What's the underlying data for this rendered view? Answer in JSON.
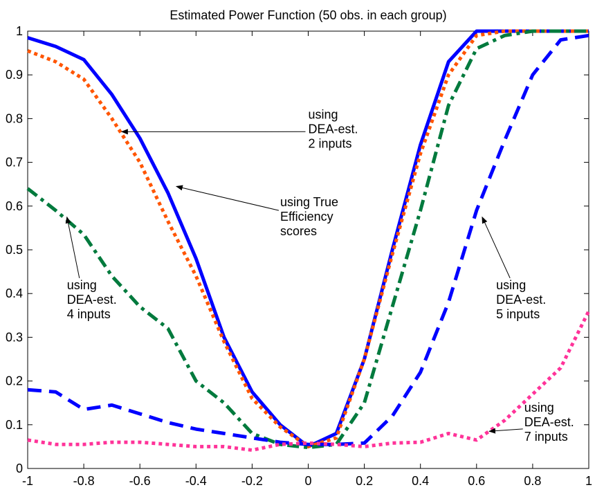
{
  "chart_data": {
    "type": "line",
    "title": "Estimated Power Function (50 obs. in each group)",
    "xlabel": "",
    "ylabel": "",
    "xlim": [
      -1,
      1
    ],
    "ylim": [
      0,
      1
    ],
    "grid": false,
    "x_ticks": [
      -1,
      -0.8,
      -0.6,
      -0.4,
      -0.2,
      0,
      0.2,
      0.4,
      0.6,
      0.8,
      1
    ],
    "x_tick_labels": [
      "-1",
      "-0.8",
      "-0.6",
      "-0.4",
      "-0.2",
      "0",
      "0.2",
      "0.4",
      "0.6",
      "0.8",
      "1"
    ],
    "y_ticks": [
      0,
      0.1,
      0.2,
      0.3,
      0.4,
      0.5,
      0.6,
      0.7,
      0.8,
      0.9,
      1
    ],
    "y_tick_labels": [
      "0",
      "0.1",
      "0.2",
      "0.3",
      "0.4",
      "0.5",
      "0.6",
      "0.7",
      "0.8",
      "0.9",
      "1"
    ],
    "x": [
      -1,
      -0.9,
      -0.8,
      -0.7,
      -0.6,
      -0.5,
      -0.4,
      -0.3,
      -0.2,
      -0.1,
      0,
      0.1,
      0.2,
      0.3,
      0.4,
      0.5,
      0.6,
      0.7,
      0.8,
      0.9,
      1
    ],
    "series": [
      {
        "key": "true_eff",
        "color": "#0000ff",
        "dash": "solid",
        "values": [
          0.985,
          0.965,
          0.935,
          0.855,
          0.755,
          0.63,
          0.48,
          0.3,
          0.175,
          0.1,
          0.05,
          0.08,
          0.25,
          0.5,
          0.74,
          0.93,
          1.0,
          1.0,
          1.0,
          1.0,
          1.0
        ]
      },
      {
        "key": "dea2",
        "color": "#ff5500",
        "dash": "dot",
        "values": [
          0.955,
          0.93,
          0.89,
          0.8,
          0.7,
          0.565,
          0.44,
          0.29,
          0.16,
          0.095,
          0.05,
          0.07,
          0.25,
          0.49,
          0.72,
          0.9,
          0.99,
          1.0,
          1.0,
          1.0,
          1.0
        ]
      },
      {
        "key": "dea4",
        "color": "#007a3d",
        "dash": "dashdot",
        "values": [
          0.64,
          0.59,
          0.535,
          0.44,
          0.37,
          0.32,
          0.2,
          0.15,
          0.08,
          0.055,
          0.048,
          0.055,
          0.15,
          0.37,
          0.59,
          0.83,
          0.96,
          0.99,
          1.0,
          1.0,
          1.0
        ]
      },
      {
        "key": "dea5",
        "color": "#0000ff",
        "dash": "dash",
        "values": [
          0.18,
          0.175,
          0.135,
          0.145,
          0.125,
          0.105,
          0.09,
          0.08,
          0.07,
          0.06,
          0.055,
          0.055,
          0.058,
          0.12,
          0.22,
          0.38,
          0.59,
          0.75,
          0.9,
          0.98,
          0.99
        ]
      },
      {
        "key": "dea7",
        "color": "#ff3399",
        "dash": "dot",
        "values": [
          0.065,
          0.055,
          0.055,
          0.06,
          0.06,
          0.055,
          0.05,
          0.05,
          0.042,
          0.055,
          0.058,
          0.055,
          0.05,
          0.058,
          0.06,
          0.08,
          0.065,
          0.11,
          0.17,
          0.23,
          0.36
        ]
      }
    ],
    "annotations": [
      {
        "key": "dea2",
        "lines": [
          "using",
          "DEA-est.",
          "2 inputs"
        ],
        "text_x": 0.0,
        "text_y": 0.8,
        "arrow_to_x": -0.665,
        "arrow_to_y": 0.77
      },
      {
        "key": "true_eff",
        "lines": [
          "using True",
          "Efficiency",
          "scores"
        ],
        "text_x": -0.1,
        "text_y": 0.6,
        "arrow_to_x": -0.47,
        "arrow_to_y": 0.645
      },
      {
        "key": "dea4",
        "lines": [
          "using",
          "DEA-est.",
          "4 inputs"
        ],
        "text_x": -0.86,
        "text_y": 0.41,
        "arrow_to_x": -0.86,
        "arrow_to_y": 0.575
      },
      {
        "key": "dea5",
        "lines": [
          "using",
          "DEA-est.",
          "5 inputs"
        ],
        "text_x": 0.67,
        "text_y": 0.41,
        "arrow_to_x": 0.62,
        "arrow_to_y": 0.575
      },
      {
        "key": "dea7",
        "lines": [
          "using",
          "DEA-est.",
          "7 inputs"
        ],
        "text_x": 0.77,
        "text_y": 0.13,
        "arrow_to_x": 0.645,
        "arrow_to_y": 0.085
      }
    ]
  }
}
